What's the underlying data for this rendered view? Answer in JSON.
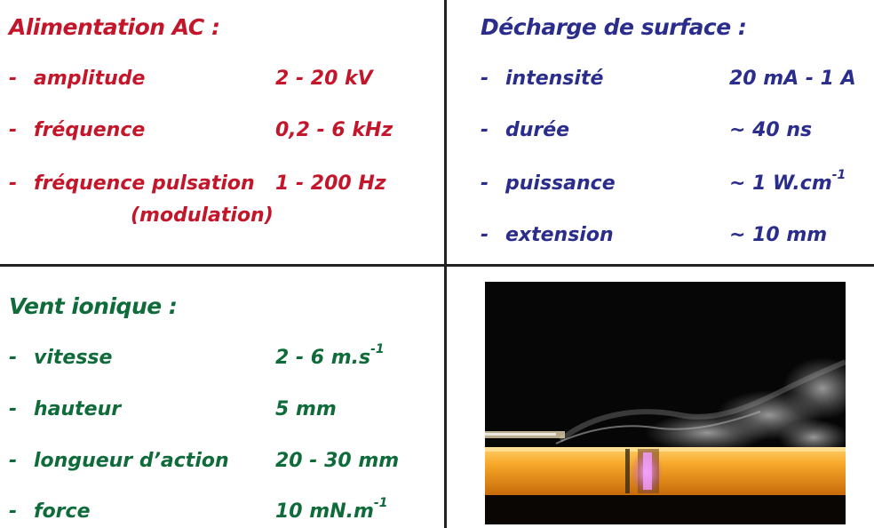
{
  "alimentation": {
    "title": "Alimentation AC :",
    "items": [
      {
        "dash": "-",
        "label": "amplitude",
        "value": "2 - 20 kV"
      },
      {
        "dash": "-",
        "label": "fréquence",
        "value": "0,2 - 6 kHz"
      },
      {
        "dash": "-",
        "label": "fréquence  pulsation",
        "value": "1 - 200 Hz"
      }
    ],
    "modulation": "(modulation)"
  },
  "decharge": {
    "title": "Décharge de surface :",
    "items": [
      {
        "dash": "-",
        "label": "intensité",
        "value": "20 mA - 1 A",
        "sup": ""
      },
      {
        "dash": "-",
        "label": "durée",
        "value": "~ 40 ns",
        "sup": ""
      },
      {
        "dash": "-",
        "label": "puissance",
        "value": "~ 1 W.cm",
        "sup": "-1"
      },
      {
        "dash": "-",
        "label": "extension",
        "value": "~ 10 mm",
        "sup": ""
      }
    ]
  },
  "vent": {
    "title": "Vent ionique :",
    "items": [
      {
        "dash": "-",
        "label": "vitesse",
        "value": "2 - 6 m.s",
        "sup": "-1"
      },
      {
        "dash": "-",
        "label": "hauteur",
        "value": "5 mm",
        "sup": ""
      },
      {
        "dash": "-",
        "label": "longueur d’action",
        "value": "20 - 30 mm",
        "sup": ""
      },
      {
        "dash": "-",
        "label": "force",
        "value": "10 mN.m",
        "sup": "-1"
      }
    ]
  },
  "colors": {
    "alimentation": "#c4162a",
    "decharge": "#2b2d8c",
    "vent": "#0f6b3a",
    "divider": "#222222"
  },
  "photo": {
    "icon": "plasma-discharge-photo"
  }
}
